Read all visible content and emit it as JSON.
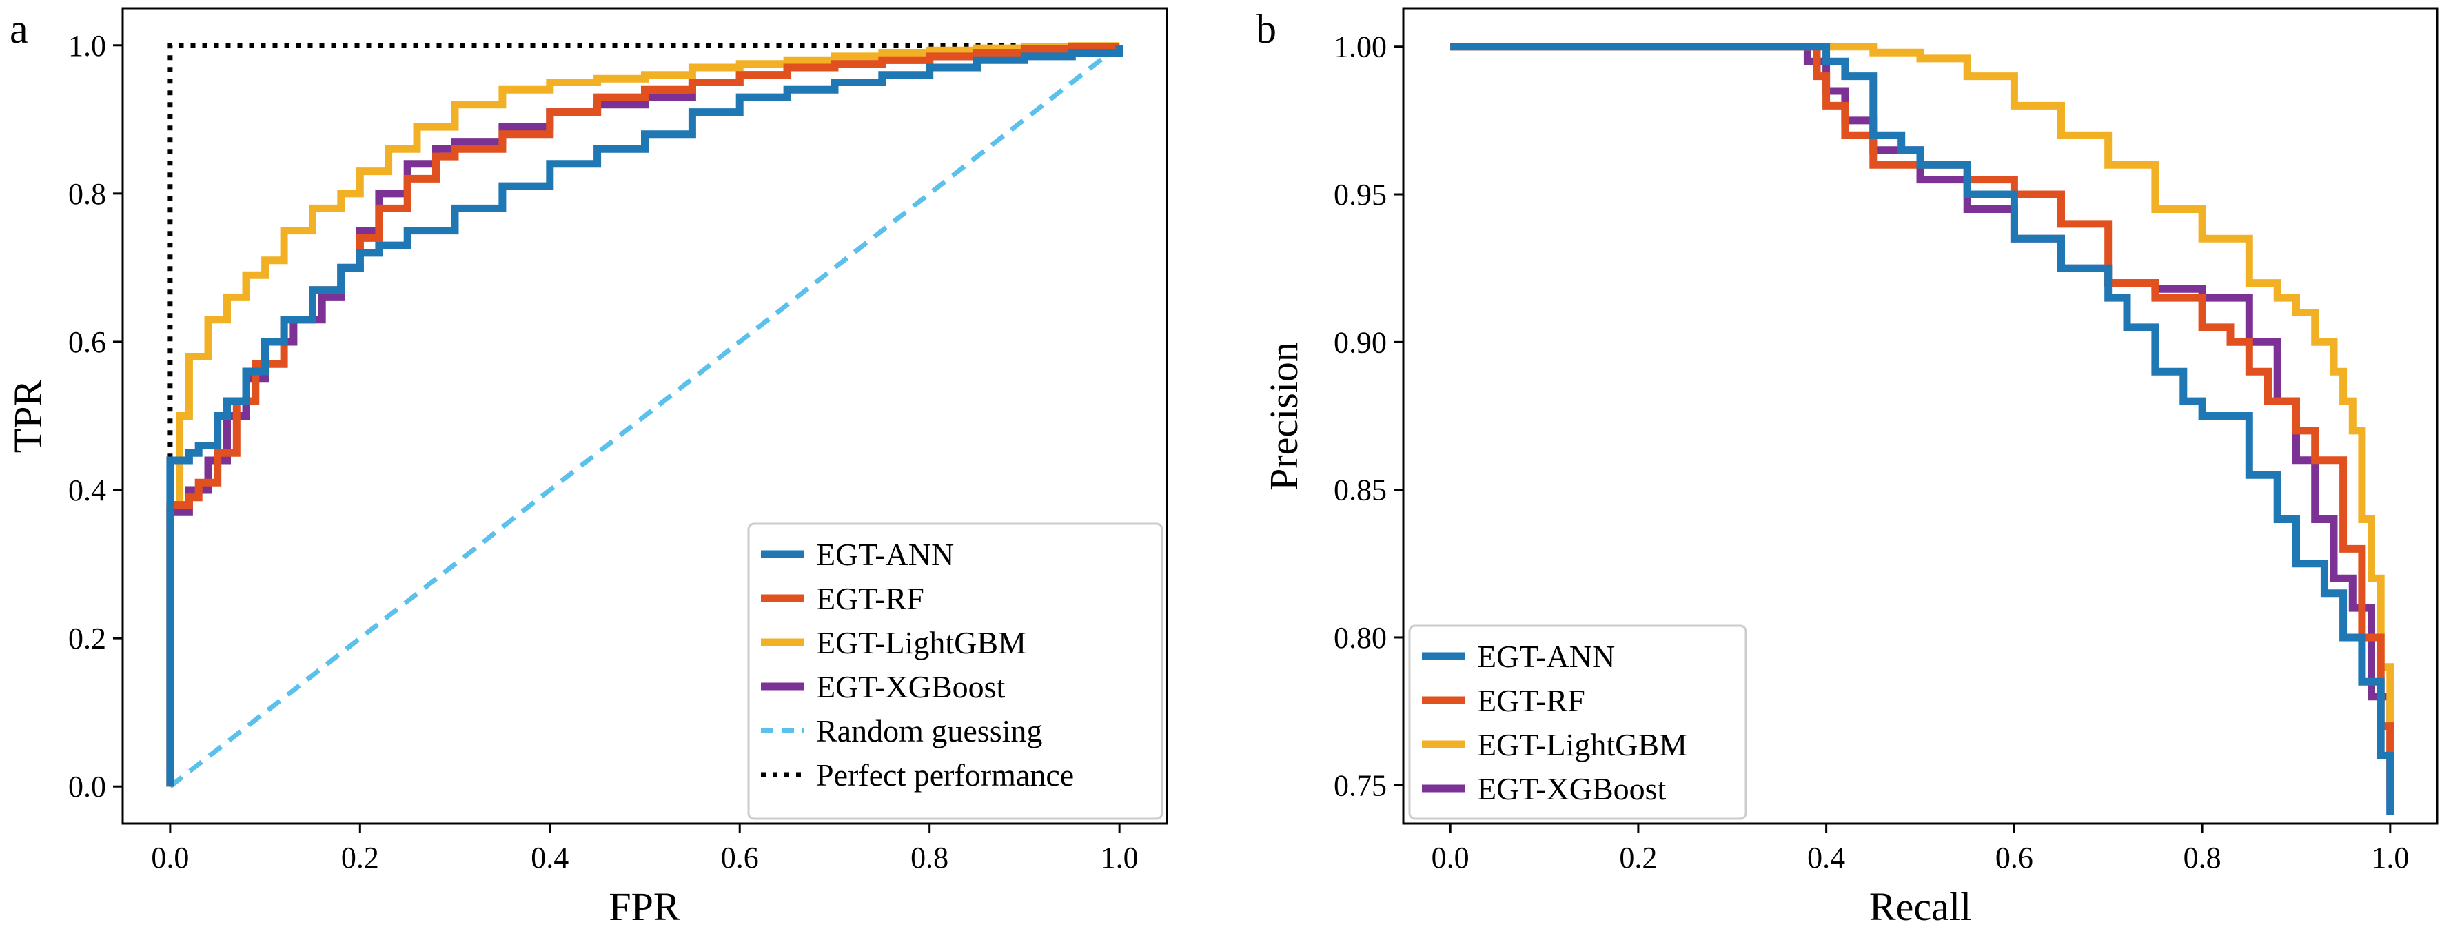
{
  "figure": {
    "panels": [
      "a",
      "b"
    ]
  },
  "colors": {
    "ann": "#1f77b4",
    "rf": "#e0511f",
    "lightgbm": "#f2b125",
    "xgboost": "#7b3294",
    "random": "#5bc0eb",
    "perfect": "#000000"
  },
  "chart_data": [
    {
      "type": "line",
      "panel_label": "a",
      "title": "",
      "xlabel": "FPR",
      "ylabel": "TPR",
      "xlim": [
        -0.05,
        1.05
      ],
      "ylim": [
        -0.05,
        1.05
      ],
      "xticks": [
        0.0,
        0.2,
        0.4,
        0.6,
        0.8,
        1.0
      ],
      "yticks": [
        0.0,
        0.2,
        0.4,
        0.6,
        0.8,
        1.0
      ],
      "xtick_labels": [
        "0.0",
        "0.2",
        "0.4",
        "0.6",
        "0.8",
        "1.0"
      ],
      "ytick_labels": [
        "0.0",
        "0.2",
        "0.4",
        "0.6",
        "0.8",
        "1.0"
      ],
      "grid": false,
      "legend_position": "lower-right",
      "series": [
        {
          "name": "EGT-ANN",
          "color_key": "ann",
          "style": "solid",
          "x": [
            0,
            0,
            0,
            0.02,
            0.03,
            0.05,
            0.06,
            0.08,
            0.1,
            0.12,
            0.15,
            0.18,
            0.2,
            0.22,
            0.25,
            0.3,
            0.35,
            0.4,
            0.45,
            0.5,
            0.55,
            0.6,
            0.65,
            0.7,
            0.75,
            0.8,
            0.85,
            0.9,
            0.95,
            1.0
          ],
          "y": [
            0,
            0.38,
            0.44,
            0.45,
            0.46,
            0.5,
            0.52,
            0.56,
            0.6,
            0.63,
            0.67,
            0.7,
            0.72,
            0.73,
            0.75,
            0.78,
            0.81,
            0.84,
            0.86,
            0.88,
            0.91,
            0.93,
            0.94,
            0.95,
            0.96,
            0.97,
            0.98,
            0.985,
            0.99,
            1.0
          ]
        },
        {
          "name": "EGT-RF",
          "color_key": "rf",
          "style": "solid",
          "x": [
            0,
            0,
            0.02,
            0.03,
            0.05,
            0.07,
            0.09,
            0.12,
            0.15,
            0.18,
            0.2,
            0.22,
            0.25,
            0.28,
            0.3,
            0.35,
            0.4,
            0.45,
            0.5,
            0.55,
            0.6,
            0.65,
            0.7,
            0.75,
            0.8,
            0.85,
            0.9,
            0.95,
            1.0
          ],
          "y": [
            0,
            0.38,
            0.39,
            0.41,
            0.45,
            0.52,
            0.57,
            0.63,
            0.67,
            0.7,
            0.74,
            0.78,
            0.82,
            0.85,
            0.86,
            0.88,
            0.91,
            0.93,
            0.94,
            0.95,
            0.96,
            0.97,
            0.975,
            0.98,
            0.985,
            0.99,
            0.995,
            0.998,
            1.0
          ]
        },
        {
          "name": "EGT-LightGBM",
          "color_key": "lightgbm",
          "style": "solid",
          "x": [
            0,
            0,
            0.01,
            0.02,
            0.04,
            0.06,
            0.08,
            0.1,
            0.12,
            0.15,
            0.18,
            0.2,
            0.23,
            0.26,
            0.3,
            0.35,
            0.4,
            0.45,
            0.5,
            0.55,
            0.6,
            0.65,
            0.7,
            0.75,
            0.8,
            0.85,
            0.9,
            0.95,
            1.0
          ],
          "y": [
            0,
            0.38,
            0.5,
            0.58,
            0.63,
            0.66,
            0.69,
            0.71,
            0.75,
            0.78,
            0.8,
            0.83,
            0.86,
            0.89,
            0.92,
            0.94,
            0.95,
            0.955,
            0.96,
            0.97,
            0.975,
            0.98,
            0.985,
            0.99,
            0.993,
            0.996,
            0.998,
            0.999,
            1.0
          ]
        },
        {
          "name": "EGT-XGBoost",
          "color_key": "xgboost",
          "style": "solid",
          "x": [
            0,
            0,
            0.02,
            0.04,
            0.06,
            0.08,
            0.1,
            0.13,
            0.16,
            0.18,
            0.2,
            0.22,
            0.25,
            0.28,
            0.3,
            0.35,
            0.4,
            0.45,
            0.5,
            0.55,
            0.6,
            0.65,
            0.7,
            0.75,
            0.8,
            0.85,
            0.9,
            0.95,
            1.0
          ],
          "y": [
            0,
            0.37,
            0.4,
            0.44,
            0.5,
            0.55,
            0.6,
            0.63,
            0.66,
            0.7,
            0.75,
            0.8,
            0.84,
            0.86,
            0.87,
            0.89,
            0.91,
            0.92,
            0.93,
            0.95,
            0.96,
            0.97,
            0.975,
            0.98,
            0.985,
            0.99,
            0.993,
            0.997,
            1.0
          ]
        },
        {
          "name": "Random guessing",
          "color_key": "random",
          "style": "dashed",
          "x": [
            0,
            1
          ],
          "y": [
            0,
            1
          ]
        },
        {
          "name": "Perfect performance",
          "color_key": "perfect",
          "style": "dotted",
          "x": [
            0,
            0,
            1
          ],
          "y": [
            0,
            1,
            1
          ]
        }
      ]
    },
    {
      "type": "line",
      "panel_label": "b",
      "title": "",
      "xlabel": "Recall",
      "ylabel": "Precision",
      "xlim": [
        -0.05,
        1.05
      ],
      "ylim": [
        0.737,
        1.013
      ],
      "xticks": [
        0.0,
        0.2,
        0.4,
        0.6,
        0.8,
        1.0
      ],
      "yticks": [
        0.75,
        0.8,
        0.85,
        0.9,
        0.95,
        1.0
      ],
      "xtick_labels": [
        "0.0",
        "0.2",
        "0.4",
        "0.6",
        "0.8",
        "1.0"
      ],
      "ytick_labels": [
        "0.75",
        "0.80",
        "0.85",
        "0.90",
        "0.95",
        "1.00"
      ],
      "grid": false,
      "legend_position": "lower-left",
      "series": [
        {
          "name": "EGT-ANN",
          "color_key": "ann",
          "style": "solid",
          "x": [
            0,
            0.38,
            0.4,
            0.42,
            0.45,
            0.48,
            0.5,
            0.55,
            0.6,
            0.65,
            0.7,
            0.72,
            0.75,
            0.78,
            0.8,
            0.85,
            0.88,
            0.9,
            0.93,
            0.95,
            0.97,
            0.99,
            1.0
          ],
          "y": [
            1.0,
            1.0,
            0.995,
            0.99,
            0.97,
            0.965,
            0.96,
            0.95,
            0.935,
            0.925,
            0.915,
            0.905,
            0.89,
            0.88,
            0.875,
            0.855,
            0.84,
            0.825,
            0.815,
            0.8,
            0.785,
            0.76,
            0.74
          ]
        },
        {
          "name": "EGT-RF",
          "color_key": "rf",
          "style": "solid",
          "x": [
            0,
            0.38,
            0.39,
            0.4,
            0.42,
            0.45,
            0.5,
            0.55,
            0.6,
            0.65,
            0.7,
            0.75,
            0.8,
            0.83,
            0.85,
            0.87,
            0.9,
            0.92,
            0.95,
            0.97,
            0.99,
            1.0
          ],
          "y": [
            1.0,
            1.0,
            0.99,
            0.98,
            0.97,
            0.96,
            0.96,
            0.955,
            0.95,
            0.94,
            0.92,
            0.915,
            0.905,
            0.9,
            0.89,
            0.88,
            0.87,
            0.86,
            0.83,
            0.8,
            0.77,
            0.745
          ]
        },
        {
          "name": "EGT-LightGBM",
          "color_key": "lightgbm",
          "style": "solid",
          "x": [
            0,
            0.38,
            0.45,
            0.5,
            0.55,
            0.6,
            0.65,
            0.7,
            0.75,
            0.8,
            0.85,
            0.88,
            0.9,
            0.92,
            0.94,
            0.95,
            0.96,
            0.97,
            0.98,
            0.99,
            1.0
          ],
          "y": [
            1.0,
            1.0,
            0.998,
            0.996,
            0.99,
            0.98,
            0.97,
            0.96,
            0.945,
            0.935,
            0.92,
            0.915,
            0.91,
            0.9,
            0.89,
            0.88,
            0.87,
            0.84,
            0.82,
            0.79,
            0.75
          ]
        },
        {
          "name": "EGT-XGBoost",
          "color_key": "xgboost",
          "style": "solid",
          "x": [
            0,
            0.37,
            0.38,
            0.4,
            0.42,
            0.45,
            0.5,
            0.55,
            0.6,
            0.65,
            0.7,
            0.75,
            0.8,
            0.85,
            0.88,
            0.9,
            0.92,
            0.94,
            0.96,
            0.98,
            1.0
          ],
          "y": [
            1.0,
            1.0,
            0.995,
            0.985,
            0.975,
            0.965,
            0.955,
            0.945,
            0.935,
            0.925,
            0.92,
            0.918,
            0.915,
            0.9,
            0.88,
            0.86,
            0.84,
            0.82,
            0.81,
            0.78,
            0.74
          ]
        }
      ]
    }
  ]
}
